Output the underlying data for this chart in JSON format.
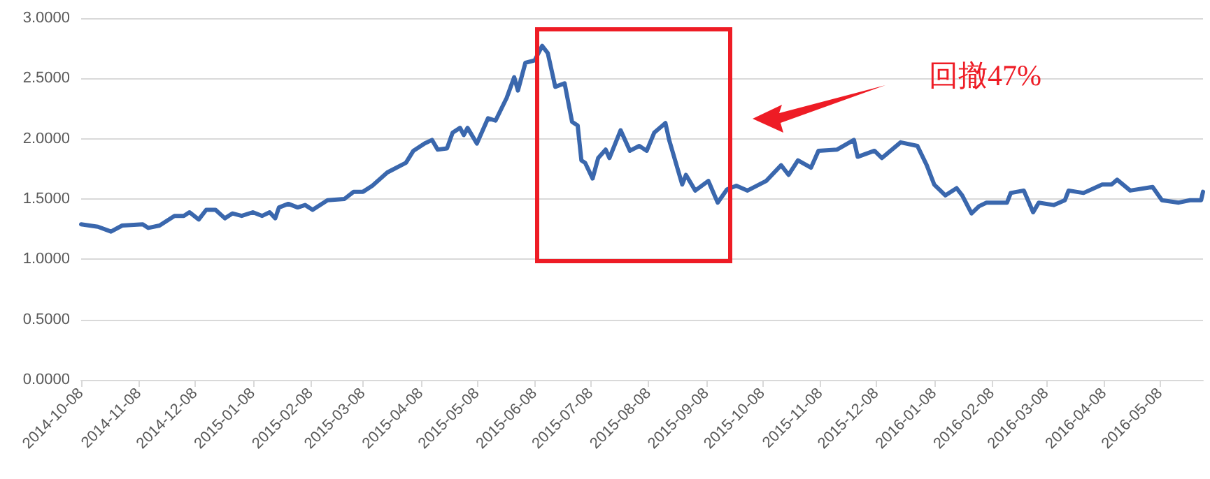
{
  "chart_data": {
    "type": "line",
    "x": [
      "2014-10-08",
      "2014-10-17",
      "2014-10-24",
      "2014-10-30",
      "2014-11-10",
      "2014-11-13",
      "2014-11-19",
      "2014-11-27",
      "2014-12-02",
      "2014-12-05",
      "2014-12-10",
      "2014-12-14",
      "2014-12-19",
      "2014-12-24",
      "2014-12-28",
      "2015-01-02",
      "2015-01-08",
      "2015-01-13",
      "2015-01-17",
      "2015-01-20",
      "2015-01-22",
      "2015-01-27",
      "2015-02-01",
      "2015-02-05",
      "2015-02-09",
      "2015-02-17",
      "2015-02-26",
      "2015-03-03",
      "2015-03-08",
      "2015-03-13",
      "2015-03-21",
      "2015-03-31",
      "2015-04-04",
      "2015-04-10",
      "2015-04-14",
      "2015-04-17",
      "2015-04-22",
      "2015-04-25",
      "2015-04-29",
      "2015-05-01",
      "2015-05-03",
      "2015-05-08",
      "2015-05-14",
      "2015-05-18",
      "2015-05-24",
      "2015-05-28",
      "2015-05-30",
      "2015-06-03",
      "2015-06-08",
      "2015-06-12",
      "2015-06-15",
      "2015-06-19",
      "2015-06-24",
      "2015-06-28",
      "2015-07-01",
      "2015-07-03",
      "2015-07-05",
      "2015-07-09",
      "2015-07-12",
      "2015-07-16",
      "2015-07-18",
      "2015-07-24",
      "2015-07-29",
      "2015-08-03",
      "2015-08-07",
      "2015-08-11",
      "2015-08-17",
      "2015-08-19",
      "2015-08-26",
      "2015-08-28",
      "2015-09-02",
      "2015-09-09",
      "2015-09-14",
      "2015-09-19",
      "2015-09-24",
      "2015-09-30",
      "2015-10-10",
      "2015-10-18",
      "2015-10-22",
      "2015-10-27",
      "2015-11-03",
      "2015-11-07",
      "2015-11-17",
      "2015-11-26",
      "2015-11-28",
      "2015-12-07",
      "2015-12-11",
      "2015-12-21",
      "2015-12-30",
      "2016-01-04",
      "2016-01-08",
      "2016-01-14",
      "2016-01-20",
      "2016-01-23",
      "2016-01-28",
      "2016-02-01",
      "2016-02-05",
      "2016-02-16",
      "2016-02-18",
      "2016-02-25",
      "2016-03-01",
      "2016-03-04",
      "2016-03-12",
      "2016-03-18",
      "2016-03-20",
      "2016-03-28",
      "2016-04-07",
      "2016-04-12",
      "2016-04-15",
      "2016-04-22",
      "2016-05-04",
      "2016-05-09",
      "2016-05-18",
      "2016-05-24",
      "2016-05-30",
      "2016-05-31"
    ],
    "series": [
      {
        "color": "#3a67ad",
        "values": [
          1.29,
          1.27,
          1.23,
          1.28,
          1.29,
          1.26,
          1.28,
          1.36,
          1.36,
          1.39,
          1.33,
          1.41,
          1.41,
          1.34,
          1.38,
          1.36,
          1.39,
          1.36,
          1.39,
          1.34,
          1.43,
          1.46,
          1.43,
          1.45,
          1.41,
          1.49,
          1.5,
          1.56,
          1.56,
          1.61,
          1.72,
          1.8,
          1.9,
          1.96,
          1.99,
          1.91,
          1.92,
          2.05,
          2.09,
          2.03,
          2.09,
          1.96,
          2.17,
          2.15,
          2.34,
          2.51,
          2.4,
          2.63,
          2.65,
          2.77,
          2.71,
          2.43,
          2.46,
          2.14,
          2.11,
          1.82,
          1.8,
          1.67,
          1.84,
          1.91,
          1.84,
          2.07,
          1.9,
          1.94,
          1.9,
          2.05,
          2.13,
          1.99,
          1.62,
          1.7,
          1.57,
          1.65,
          1.47,
          1.58,
          1.61,
          1.57,
          1.65,
          1.78,
          1.7,
          1.82,
          1.76,
          1.9,
          1.91,
          1.99,
          1.85,
          1.9,
          1.84,
          1.97,
          1.94,
          1.78,
          1.62,
          1.53,
          1.59,
          1.53,
          1.38,
          1.44,
          1.47,
          1.47,
          1.55,
          1.57,
          1.39,
          1.47,
          1.45,
          1.49,
          1.57,
          1.55,
          1.62,
          1.62,
          1.66,
          1.57,
          1.6,
          1.49,
          1.47,
          1.49,
          1.49,
          1.56
        ]
      }
    ],
    "xlim": [
      "2014-10-08",
      "2016-05-31"
    ],
    "xticks": [
      "2014-10-08",
      "2014-11-08",
      "2014-12-08",
      "2015-01-08",
      "2015-02-08",
      "2015-03-08",
      "2015-04-08",
      "2015-05-08",
      "2015-06-08",
      "2015-07-08",
      "2015-08-08",
      "2015-09-08",
      "2015-10-08",
      "2015-11-08",
      "2015-12-08",
      "2016-01-08",
      "2016-02-08",
      "2016-03-08",
      "2016-04-08",
      "2016-05-08"
    ],
    "ylim": [
      0,
      3
    ],
    "yticks": [
      {
        "value": 0,
        "label": "0.0000"
      },
      {
        "value": 0.5,
        "label": "0.5000"
      },
      {
        "value": 1,
        "label": "1.0000"
      },
      {
        "value": 1.5,
        "label": "1.5000"
      },
      {
        "value": 2,
        "label": "2.0000"
      },
      {
        "value": 2.5,
        "label": "2.5000"
      },
      {
        "value": 3,
        "label": "3.0000"
      }
    ],
    "grid": "y",
    "marker": "none",
    "line_style": "solid",
    "annotations": [
      "回撤47%"
    ]
  }
}
